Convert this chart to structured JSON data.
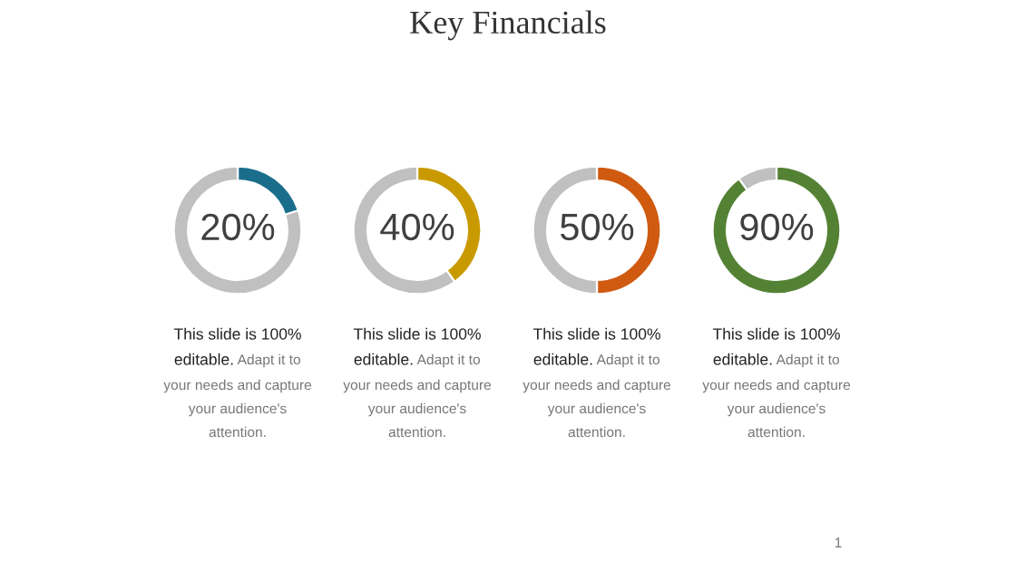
{
  "chart_data": [
    {
      "type": "donut",
      "title": "Key Financials",
      "categories": [
        null,
        null
      ],
      "values": [
        20,
        80
      ],
      "colors": [
        "#1a6e8c",
        "#c0c0c0"
      ],
      "value_labels": [
        "20%",
        null
      ],
      "annotations": [
        "This slide is 100%",
        "editable.",
        "Adapt it to",
        "your needs and capture",
        "your audience's",
        "attention."
      ]
    },
    {
      "type": "donut",
      "categories": [
        null,
        null
      ],
      "values": [
        40,
        60
      ],
      "colors": [
        "#c99a00",
        "#c0c0c0"
      ],
      "value_labels": [
        "40%",
        null
      ],
      "annotations": [
        "This slide is 100%",
        "editable.",
        "Adapt it to",
        "your needs and capture",
        "your audience's",
        "attention."
      ]
    },
    {
      "type": "donut",
      "categories": [
        null,
        null
      ],
      "values": [
        50,
        50
      ],
      "colors": [
        "#d05a10",
        "#c0c0c0"
      ],
      "value_labels": [
        "50%",
        null
      ],
      "annotations": [
        "This slide is 100%",
        "editable.",
        "Adapt it to",
        "your needs and capture",
        "your audience's",
        "attention."
      ]
    },
    {
      "type": "donut",
      "categories": [
        null,
        null
      ],
      "values": [
        90,
        10
      ],
      "colors": [
        "#548235",
        "#c0c0c0"
      ],
      "value_labels": [
        "90%",
        null
      ],
      "annotations": [
        "This slide is 100%",
        "editable.",
        "Adapt it to",
        "your needs and capture",
        "your audience's",
        "attention.",
        "1"
      ]
    }
  ]
}
